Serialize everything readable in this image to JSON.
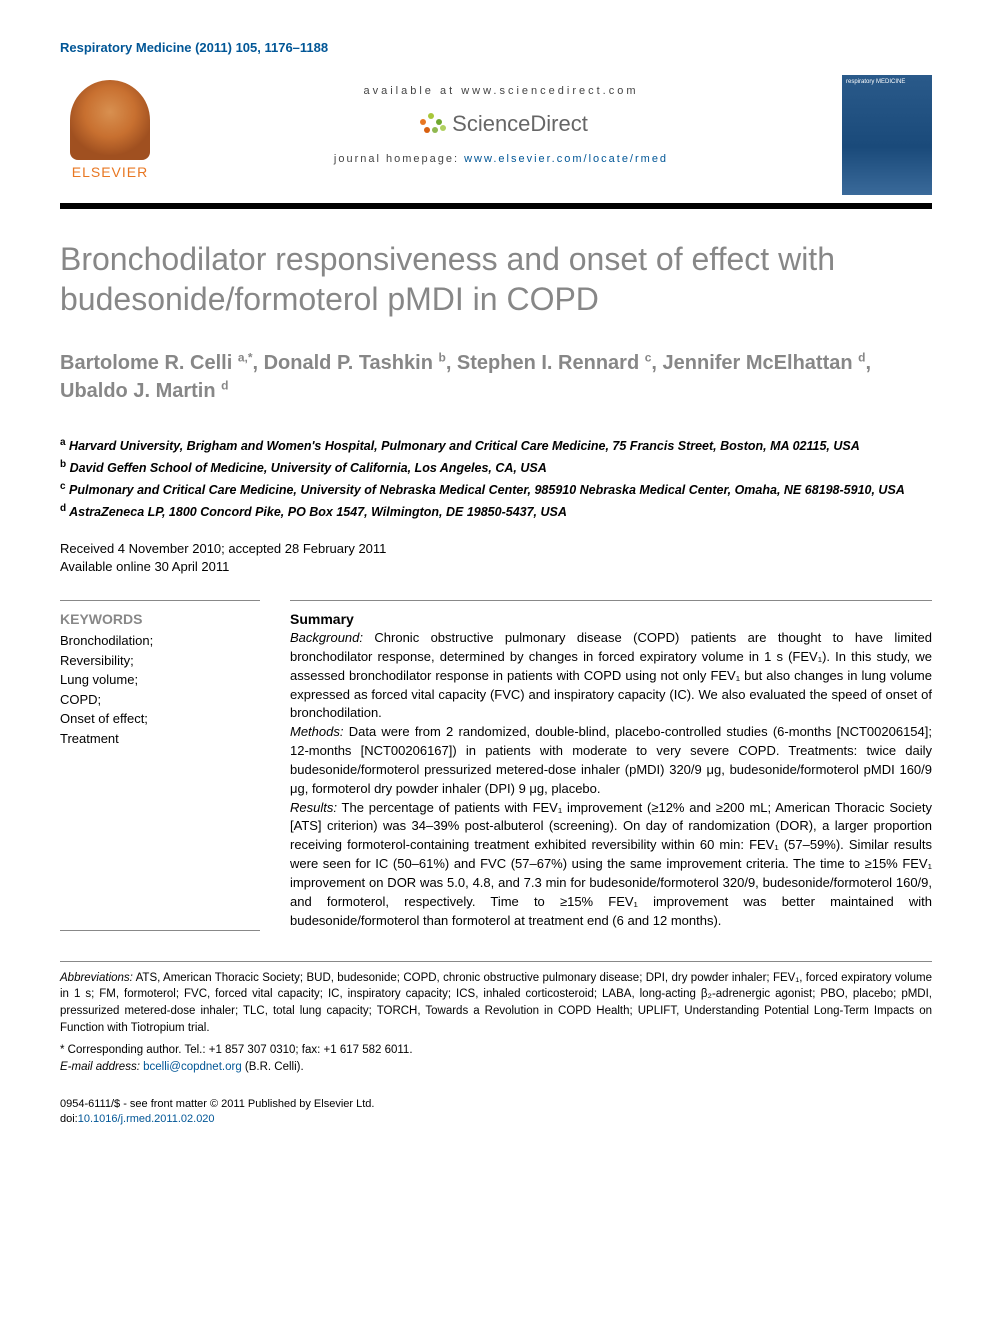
{
  "citation": "Respiratory Medicine (2011) 105, 1176–1188",
  "header": {
    "available_at": "available at www.sciencedirect.com",
    "sciencedirect": "ScienceDirect",
    "homepage_label": "journal homepage: ",
    "homepage_url": "www.elsevier.com/locate/rmed",
    "elsevier": "ELSEVIER",
    "cover_title": "respiratory MEDICINE"
  },
  "title": "Bronchodilator responsiveness and onset of effect with budesonide/formoterol pMDI in COPD",
  "authors_html": "Bartolome R. Celli <sup>a,*</sup>, Donald P. Tashkin <sup>b</sup>, Stephen I. Rennard <sup>c</sup>, Jennifer McElhattan <sup>d</sup>, Ubaldo J. Martin <sup>d</sup>",
  "affiliations": [
    {
      "sup": "a",
      "text": "Harvard University, Brigham and Women's Hospital, Pulmonary and Critical Care Medicine, 75 Francis Street, Boston, MA 02115, USA"
    },
    {
      "sup": "b",
      "text": "David Geffen School of Medicine, University of California, Los Angeles, CA, USA"
    },
    {
      "sup": "c",
      "text": "Pulmonary and Critical Care Medicine, University of Nebraska Medical Center, 985910 Nebraska Medical Center, Omaha, NE 68198-5910, USA"
    },
    {
      "sup": "d",
      "text": "AstraZeneca LP, 1800 Concord Pike, PO Box 1547, Wilmington, DE 19850-5437, USA"
    }
  ],
  "dates": {
    "received_accepted": "Received 4 November 2010; accepted 28 February 2011",
    "online": "Available online 30 April 2011"
  },
  "keywords": {
    "heading": "KEYWORDS",
    "items": [
      "Bronchodilation;",
      "Reversibility;",
      "Lung volume;",
      "COPD;",
      "Onset of effect;",
      "Treatment"
    ]
  },
  "summary": {
    "heading": "Summary",
    "background_label": "Background:",
    "background": " Chronic obstructive pulmonary disease (COPD) patients are thought to have limited bronchodilator response, determined by changes in forced expiratory volume in 1 s (FEV₁). In this study, we assessed bronchodilator response in patients with COPD using not only FEV₁ but also changes in lung volume expressed as forced vital capacity (FVC) and inspiratory capacity (IC). We also evaluated the speed of onset of bronchodilation.",
    "methods_label": "Methods:",
    "methods": " Data were from 2 randomized, double-blind, placebo-controlled studies (6-months [NCT00206154]; 12-months [NCT00206167]) in patients with moderate to very severe COPD. Treatments: twice daily budesonide/formoterol pressurized metered-dose inhaler (pMDI) 320/9 μg, budesonide/formoterol pMDI 160/9 μg, formoterol dry powder inhaler (DPI) 9 μg, placebo.",
    "results_label": "Results:",
    "results": " The percentage of patients with FEV₁ improvement (≥12% and ≥200 mL; American Thoracic Society [ATS] criterion) was 34–39% post-albuterol (screening). On day of randomization (DOR), a larger proportion receiving formoterol-containing treatment exhibited reversibility within 60 min: FEV₁ (57–59%). Similar results were seen for IC (50–61%) and FVC (57–67%) using the same improvement criteria. The time to ≥15% FEV₁ improvement on DOR was 5.0, 4.8, and 7.3 min for budesonide/formoterol 320/9, budesonide/formoterol 160/9, and formoterol, respectively. Time to ≥15% FEV₁ improvement was better maintained with budesonide/formoterol than formoterol at treatment end (6 and 12 months)."
  },
  "abbreviations": {
    "label": "Abbreviations:",
    "text": " ATS, American Thoracic Society; BUD, budesonide; COPD, chronic obstructive pulmonary disease; DPI, dry powder inhaler; FEV₁, forced expiratory volume in 1 s; FM, formoterol; FVC, forced vital capacity; IC, inspiratory capacity; ICS, inhaled corticosteroid; LABA, long-acting β₂-adrenergic agonist; PBO, placebo; pMDI, pressurized metered-dose inhaler; TLC, total lung capacity; TORCH, Towards a Revolution in COPD Health; UPLIFT, Understanding Potential Long-Term Impacts on Function with Tiotropium trial."
  },
  "corresponding": {
    "label": "* Corresponding author.",
    "contact": " Tel.: +1 857 307 0310; fax: +1 617 582 6011.",
    "email_label": "E-mail address:",
    "email": "bcelli@copdnet.org",
    "email_suffix": " (B.R. Celli)."
  },
  "bottom": {
    "issn": "0954-6111/$ - see front matter © 2011 Published by Elsevier Ltd.",
    "doi_label": "doi:",
    "doi": "10.1016/j.rmed.2011.02.020"
  },
  "colors": {
    "link": "#015696",
    "title_gray": "#878787",
    "orange": "#e87722"
  }
}
